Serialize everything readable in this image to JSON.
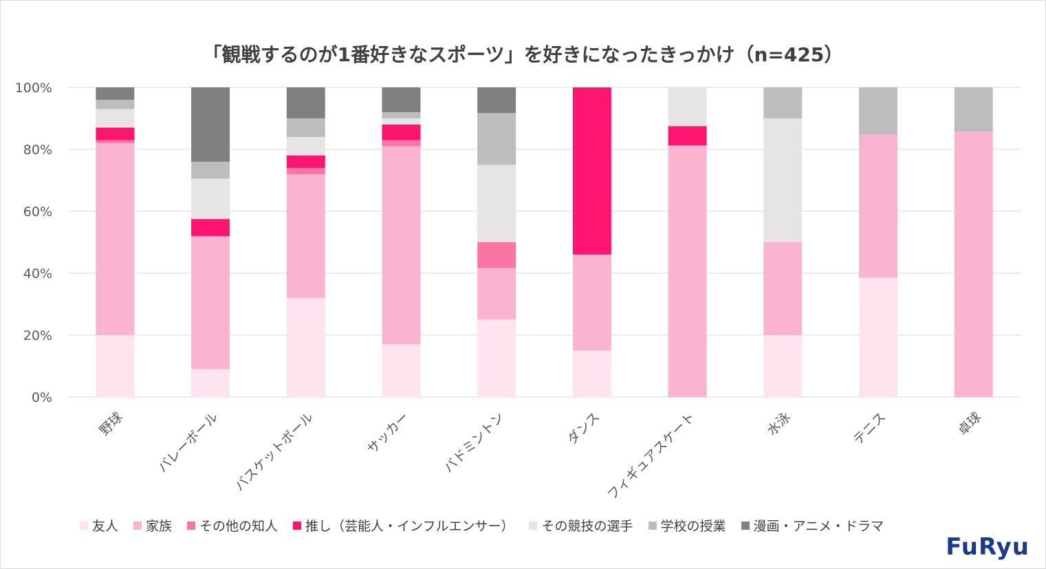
{
  "chart_data": {
    "type": "bar",
    "stacked": true,
    "title": "「観戦するのが1番好きなスポーツ」を好きになったきっかけ（n=425）",
    "categories": [
      "野球",
      "バレーボール",
      "バスケットボール",
      "サッカー",
      "バドミントン",
      "ダンス",
      "フィギュアスケート",
      "水泳",
      "テニス",
      "卓球"
    ],
    "ylim": [
      0,
      100
    ],
    "yticks": [
      "0%",
      "20%",
      "40%",
      "60%",
      "80%",
      "100%"
    ],
    "ytick_values": [
      0,
      20,
      40,
      60,
      80,
      100
    ],
    "legend_position": "bottom",
    "series": [
      {
        "name": "友人",
        "color": "#fde4ee",
        "values": [
          20,
          9,
          32,
          17,
          25,
          15,
          0,
          20,
          38.5,
          0
        ]
      },
      {
        "name": "家族",
        "color": "#fbb4d0",
        "values": [
          62,
          43,
          40,
          64,
          16.7,
          31,
          81.3,
          30,
          46.2,
          85.7
        ]
      },
      {
        "name": "その他の知人",
        "color": "#fa74a4",
        "values": [
          1,
          0,
          2,
          2,
          8.3,
          0,
          0,
          0,
          0,
          0
        ]
      },
      {
        "name": "推し（芸能人・インフルエンサー）",
        "color": "#ff1470",
        "values": [
          4,
          5.5,
          4,
          5,
          0,
          54,
          6.2,
          0,
          0,
          0
        ]
      },
      {
        "name": "その競技の選手",
        "color": "#e6e4e5",
        "values": [
          6,
          13,
          6,
          2,
          25,
          0,
          12.5,
          40,
          0,
          0
        ]
      },
      {
        "name": "学校の授業",
        "color": "#bdbdbd",
        "values": [
          3,
          5.5,
          6,
          2,
          16.7,
          0,
          0,
          10,
          15.3,
          14.3
        ]
      },
      {
        "name": "漫画・アニメ・ドラマ",
        "color": "#808080",
        "values": [
          4,
          24,
          10,
          8,
          8.3,
          0,
          0,
          0,
          0,
          0
        ]
      }
    ]
  },
  "brand": {
    "logo_text": "FuRyu",
    "color": "#1a3a8c"
  }
}
